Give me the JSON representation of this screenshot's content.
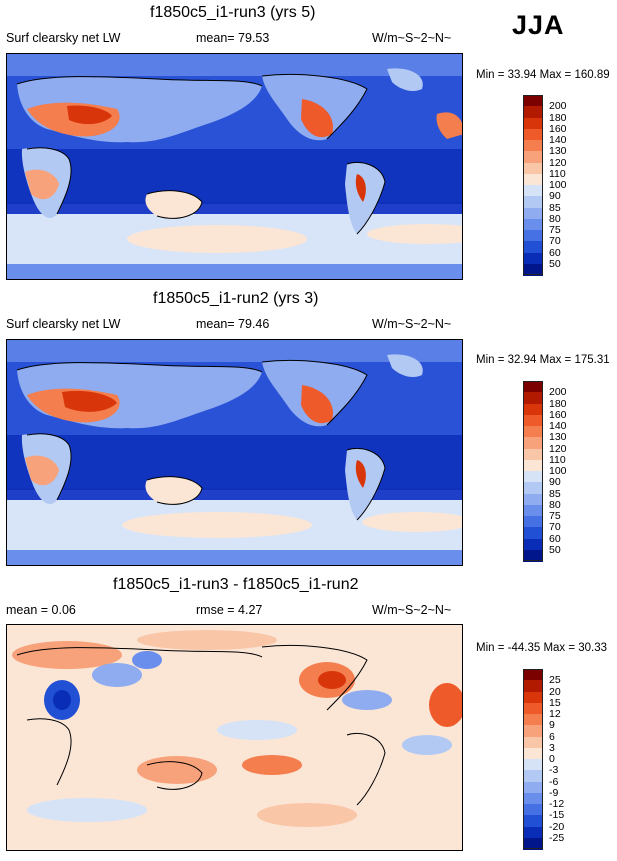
{
  "season": "JJA",
  "panels": [
    {
      "title": "f1850c5_i1-run3 (yrs 5)",
      "left_label": "Surf clearsky net LW",
      "center_label": "mean=  79.53",
      "units": "W/m~S~2~N~",
      "minmax": "Min =  33.94 Max = 160.89",
      "colorbar_labels": [
        "200",
        "180",
        "160",
        "140",
        "130",
        "120",
        "110",
        "100",
        "90",
        "85",
        "80",
        "75",
        "70",
        "60",
        "50"
      ],
      "colorbar_colors": [
        "#7b0000",
        "#b21a00",
        "#d8360a",
        "#ee5a2a",
        "#f47e4e",
        "#f7a27a",
        "#f9c6a8",
        "#fbe6d6",
        "#d6e3f7",
        "#b2c9f3",
        "#8eacef",
        "#6a8eeb",
        "#4671e4",
        "#2250d4",
        "#0a2db8",
        "#02168c"
      ]
    },
    {
      "title": "f1850c5_i1-run2 (yrs 3)",
      "left_label": "Surf clearsky net LW",
      "center_label": "mean=  79.46",
      "units": "W/m~S~2~N~",
      "minmax": "Min =  32.94 Max = 175.31",
      "colorbar_labels": [
        "200",
        "180",
        "160",
        "140",
        "130",
        "120",
        "110",
        "100",
        "90",
        "85",
        "80",
        "75",
        "70",
        "60",
        "50"
      ],
      "colorbar_colors": [
        "#7b0000",
        "#b21a00",
        "#d8360a",
        "#ee5a2a",
        "#f47e4e",
        "#f7a27a",
        "#f9c6a8",
        "#fbe6d6",
        "#d6e3f7",
        "#b2c9f3",
        "#8eacef",
        "#6a8eeb",
        "#4671e4",
        "#2250d4",
        "#0a2db8",
        "#02168c"
      ]
    },
    {
      "title": "f1850c5_i1-run3 - f1850c5_i1-run2",
      "left_label": "mean =  0.06",
      "center_label": "rmse =  4.27",
      "units": "W/m~S~2~N~",
      "minmax": "Min = -44.35 Max =  30.33",
      "colorbar_labels": [
        "25",
        "20",
        "15",
        "12",
        "9",
        "6",
        "3",
        "0",
        "-3",
        "-6",
        "-9",
        "-12",
        "-15",
        "-20",
        "-25"
      ],
      "colorbar_colors": [
        "#7b0000",
        "#b21a00",
        "#d8360a",
        "#ee5a2a",
        "#f47e4e",
        "#f7a27a",
        "#f9c6a8",
        "#fbe6d6",
        "#d6e3f7",
        "#b2c9f3",
        "#8eacef",
        "#6a8eeb",
        "#4671e4",
        "#2250d4",
        "#0a2db8",
        "#02168c"
      ]
    }
  ],
  "chart_data": [
    {
      "type": "heatmap",
      "title": "f1850c5_i1-run3 (yrs 5)",
      "variable": "Surf clearsky net LW",
      "units": "W/m~S~2~N~",
      "mean": 79.53,
      "min": 33.94,
      "max": 160.89,
      "contour_levels": [
        50,
        60,
        70,
        75,
        80,
        85,
        90,
        100,
        110,
        120,
        130,
        140,
        160,
        180,
        200
      ]
    },
    {
      "type": "heatmap",
      "title": "f1850c5_i1-run2 (yrs 3)",
      "variable": "Surf clearsky net LW",
      "units": "W/m~S~2~N~",
      "mean": 79.46,
      "min": 32.94,
      "max": 175.31,
      "contour_levels": [
        50,
        60,
        70,
        75,
        80,
        85,
        90,
        100,
        110,
        120,
        130,
        140,
        160,
        180,
        200
      ]
    },
    {
      "type": "heatmap",
      "title": "f1850c5_i1-run3 - f1850c5_i1-run2",
      "units": "W/m~S~2~N~",
      "mean": 0.06,
      "rmse": 4.27,
      "min": -44.35,
      "max": 30.33,
      "contour_levels": [
        -25,
        -20,
        -15,
        -12,
        -9,
        -6,
        -3,
        0,
        3,
        6,
        9,
        12,
        15,
        20,
        25
      ]
    }
  ]
}
